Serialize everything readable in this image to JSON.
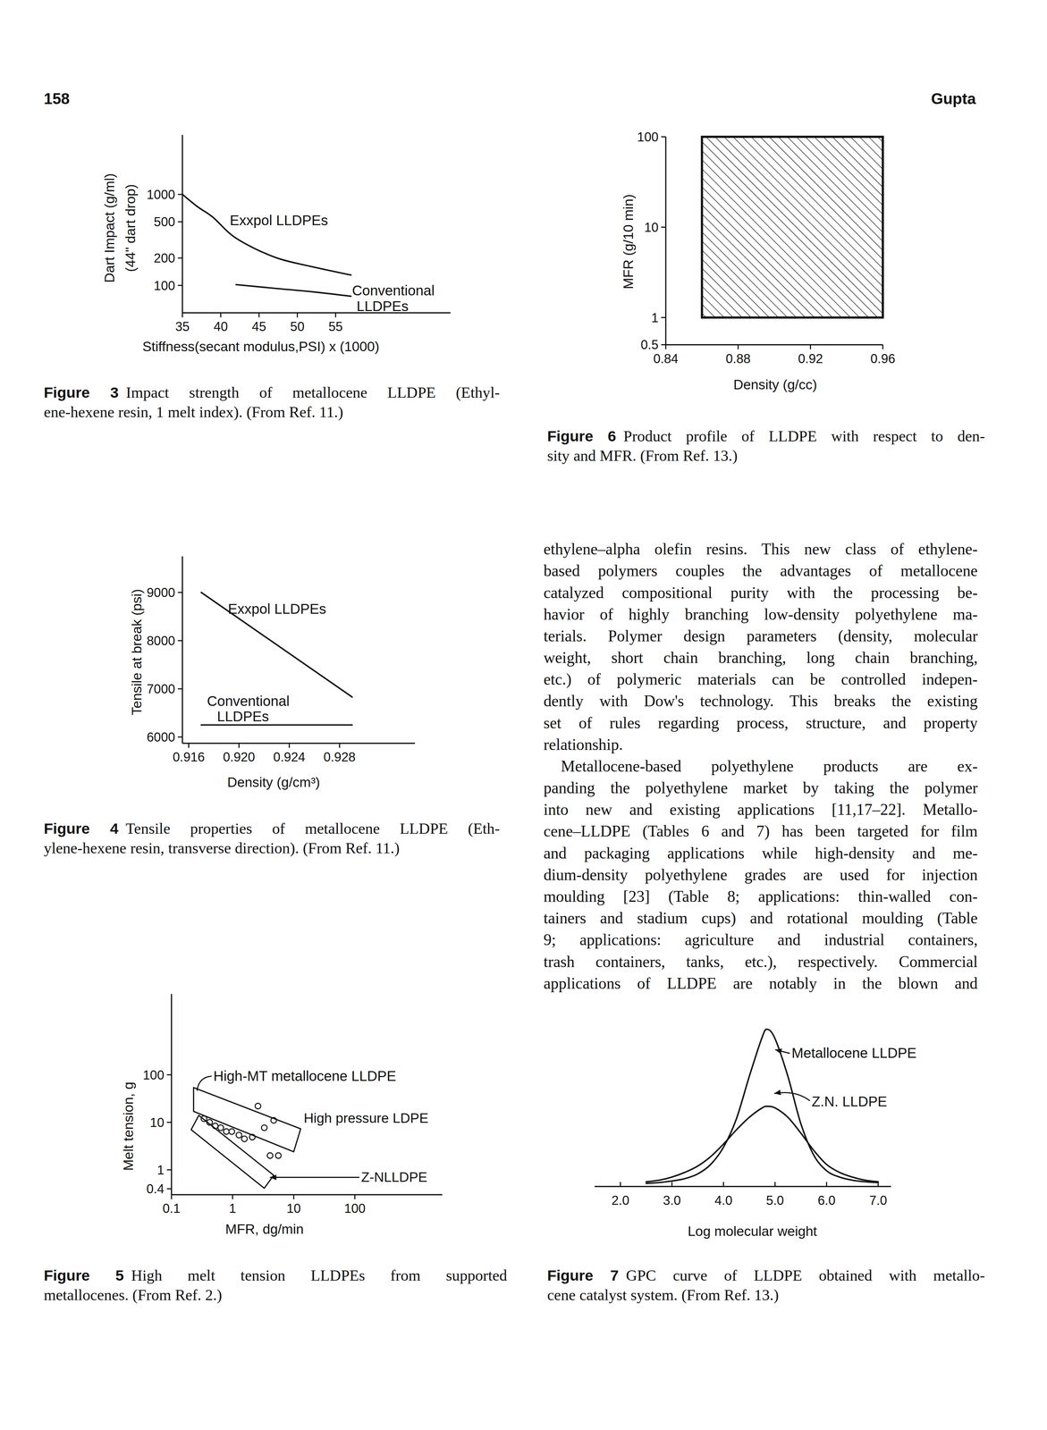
{
  "header": {
    "page": "158",
    "author": "Gupta"
  },
  "chart_data": [
    {
      "type": "line",
      "xlabel": "Stiffness(secant modulus,PSI) x (1000)",
      "ylabel": [
        "Dart Impact (g/ml)",
        "(44\" dart drop)"
      ],
      "log": "y",
      "xlim": [
        35,
        70
      ],
      "ylim": [
        50,
        4500
      ],
      "xticks": [
        35,
        40,
        45,
        50,
        55
      ],
      "yticks": [
        100,
        200,
        500,
        1000
      ],
      "series": [
        {
          "name": "Exxpol LLDPEs",
          "color": "#111111",
          "x": [
            35,
            37,
            39,
            42,
            47,
            52,
            57
          ],
          "values": [
            1000,
            730,
            560,
            330,
            205,
            160,
            130
          ]
        },
        {
          "name": "Conventional LLDPEs",
          "color": "#111111",
          "x": [
            42,
            47,
            52,
            57
          ],
          "values": [
            102,
            93,
            85,
            76
          ]
        }
      ],
      "caption": {
        "label": "Figure 3",
        "lines": [
          "Impact strength of metallocene LLDPE (Ethyl-",
          "ene-hexene resin, 1 melt index). (From Ref. 11.)"
        ]
      }
    },
    {
      "type": "line",
      "xlabel": "Density (g/cm³)",
      "ylabel": "Tensile at break (psi)",
      "xlim": [
        0.9155,
        0.934
      ],
      "ylim": [
        5870,
        9750
      ],
      "xticks": [
        0.916,
        {
          "value": 0.92,
          "label": "0.920"
        },
        0.924,
        0.928
      ],
      "yticks": [
        6000,
        7000,
        8000,
        9000
      ],
      "series": [
        {
          "name": "Exxpol LLDPEs",
          "color": "#111111",
          "x": [
            0.917,
            0.929
          ],
          "values": [
            9000,
            6830
          ]
        },
        {
          "name": "Conventional LLDPEs",
          "color": "#111111",
          "x": [
            0.917,
            0.929
          ],
          "values": [
            6250,
            6250
          ]
        }
      ],
      "caption": {
        "label": "Figure 4",
        "lines": [
          "Tensile properties of metallocene LLDPE (Eth-",
          "ylene-hexene resin, transverse direction). (From Ref. 11.)"
        ]
      }
    },
    {
      "type": "scatter",
      "xlabel": "MFR, dg/min",
      "ylabel": "Melt tension, g",
      "log": true,
      "xlim": [
        0.1,
        2700
      ],
      "ylim": [
        0.3,
        5000
      ],
      "xticks": [
        0.1,
        1,
        10,
        100
      ],
      "yticks": [
        0.4,
        1,
        10,
        100
      ],
      "series": [
        {
          "name": "High-MT metallocene LLDPE",
          "color": "#111111",
          "marker": "circle",
          "x": [
            0.34,
            0.42,
            0.52,
            0.64,
            0.79,
            0.97,
            1.27,
            1.56,
            2.1,
            2.6,
            3.3,
            4.1,
            5.6,
            4.7
          ],
          "values": [
            11.9,
            10,
            8.4,
            7.7,
            6.4,
            6.4,
            5.4,
            4.5,
            4.9,
            22,
            7.7,
            2.0,
            2.0,
            11
          ]
        }
      ],
      "regions": [
        {
          "name": "High pressure LDPE",
          "x": [
            0.23,
            13,
            10,
            0.23
          ],
          "y": [
            54,
            7.3,
            2.4,
            17
          ]
        },
        {
          "name": "Z-NLLDPE",
          "x": [
            0.28,
            4.7,
            3.3,
            0.21
          ],
          "y": [
            14,
            0.77,
            0.41,
            7.0
          ]
        }
      ],
      "caption": {
        "label": "Figure 5",
        "lines": [
          "High melt tension LLDPEs from supported",
          "metallocenes. (From Ref. 2.)"
        ]
      }
    },
    {
      "type": "region",
      "xlabel": "Density (g/cc)",
      "ylabel": "MFR (g/10 min)",
      "log": "y",
      "xlim": [
        0.84,
        0.96
      ],
      "ylim": [
        0.5,
        100
      ],
      "xticks": [
        0.84,
        0.88,
        0.92,
        0.96
      ],
      "yticks": [
        0.5,
        1,
        10,
        100
      ],
      "region": {
        "x": [
          0.86,
          0.96
        ],
        "y": [
          1,
          100
        ]
      },
      "caption": {
        "label": "Figure 6",
        "lines": [
          "Product profile of LLDPE with respect to den-",
          "sity and MFR. (From Ref. 13.)"
        ]
      }
    },
    {
      "type": "line",
      "xlabel": "Log molecular weight",
      "tick_labels": "x",
      "xlim": [
        1.5,
        7.25
      ],
      "ylim": [
        0,
        105
      ],
      "xticks": [
        {
          "value": 2,
          "label": "2.0"
        },
        {
          "value": 3,
          "label": "3.0"
        },
        {
          "value": 4,
          "label": "4.0"
        },
        {
          "value": 5,
          "label": "5.0"
        },
        {
          "value": 6,
          "label": "6.0"
        },
        {
          "value": 7,
          "label": "7.0"
        }
      ],
      "x": [
        2.5,
        2.75,
        3.0,
        3.25,
        3.5,
        3.75,
        4.0,
        4.25,
        4.5,
        4.75,
        4.85,
        5.0,
        5.25,
        5.5,
        5.75,
        6.0,
        6.25,
        6.5,
        6.75,
        7.0
      ],
      "series": [
        {
          "name": "Metallocene LLDPE",
          "color": "#111111",
          "values": [
            2,
            2.5,
            3.5,
            5,
            8,
            14,
            25,
            43,
            70,
            95,
            100,
            94,
            70,
            40,
            20,
            10,
            6,
            4,
            3,
            2.5
          ]
        },
        {
          "name": "Z.N. LLDPE",
          "color": "#111111",
          "values": [
            3,
            4,
            6,
            9,
            13,
            19,
            27,
            36,
            44,
            50,
            51,
            50,
            44,
            34,
            23,
            14,
            9,
            6,
            4,
            3
          ]
        }
      ],
      "caption": {
        "label": "Figure 7",
        "lines": [
          "GPC curve of LLDPE obtained with metallo-",
          "cene catalyst system. (From Ref. 13.)"
        ]
      }
    }
  ],
  "body": {
    "paragraphs": [
      [
        "ethylene–alpha olefin resins. This new class of ethylene-",
        "based polymers couples the advantages of metallocene",
        "catalyzed compositional purity with the processing be-",
        "havior of highly branching low-density polyethylene ma-",
        "terials. Polymer design parameters (density, molecular",
        "weight, short chain branching, long chain branching,",
        "etc.) of polymeric materials can be controlled indepen-",
        "dently with Dow's technology. This breaks the existing",
        "set of rules regarding process, structure, and property",
        "relationship."
      ],
      [
        "Metallocene-based polyethylene products are ex-",
        "panding the polyethylene market by taking the polymer",
        "into new and existing applications [11,17–22]. Metallo-",
        "cene–LLDPE (Tables 6 and 7) has been targeted for film",
        "and packaging applications while high-density and me-",
        "dium-density polyethylene grades are used for injection",
        "moulding [23] (Table 8; applications: thin-walled con-",
        "tainers and stadium cups) and rotational moulding (Table",
        "9; applications: agriculture and industrial containers,",
        "trash containers, tanks, etc.), respectively. Commercial",
        "applications of LLDPE are notably in the blown and"
      ]
    ]
  }
}
